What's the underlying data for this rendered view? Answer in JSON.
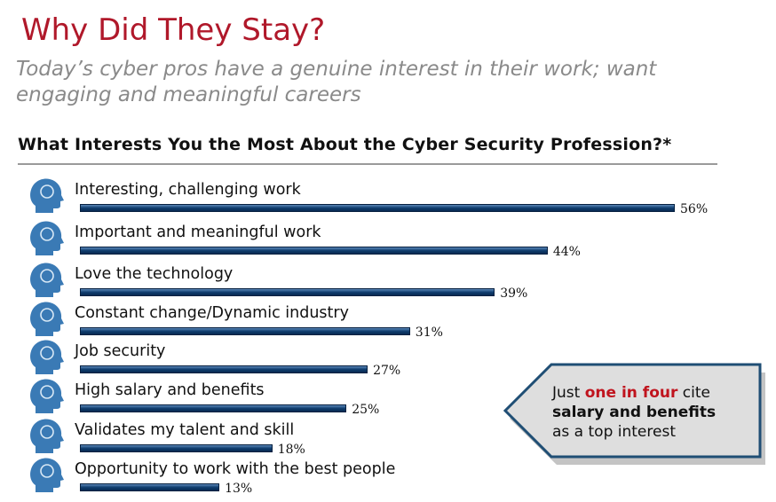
{
  "header": {
    "title": "Why Did They Stay?",
    "subtitle": "Today’s cyber pros have a genuine interest in their work; want engaging and meaningful careers"
  },
  "chart_data": {
    "type": "bar",
    "orientation": "horizontal",
    "title": "What Interests You the Most About the Cyber Security Profession?*",
    "categories": [
      "Interesting, challenging work",
      "Important and meaningful work",
      "Love the technology",
      "Constant change/Dynamic industry",
      "Job security",
      "High salary and benefits",
      "Validates my talent and skill",
      "Opportunity to work with the best people"
    ],
    "values": [
      56,
      44,
      39,
      31,
      27,
      25,
      18,
      13
    ],
    "value_labels": [
      "56%",
      "44%",
      "39%",
      "31%",
      "27%",
      "25%",
      "18%",
      "13%"
    ],
    "icons": [
      "lightbulb-head-icon",
      "plant-head-icon",
      "gears-head-icon",
      "recycle-head-icon",
      "key-head-icon",
      "dollar-head-icon",
      "brain-head-icon",
      "globe-head-icon"
    ],
    "xlim": [
      0,
      56
    ],
    "bar_color": "#0f3d6e"
  },
  "callout": {
    "pre": "Just ",
    "highlight": "one in four",
    "post": " cite",
    "bold": "salary and benefits",
    "last": "as a top interest"
  },
  "colors": {
    "title": "#b0182a",
    "highlight": "#c0141e",
    "icon": "#3a7ab5"
  }
}
